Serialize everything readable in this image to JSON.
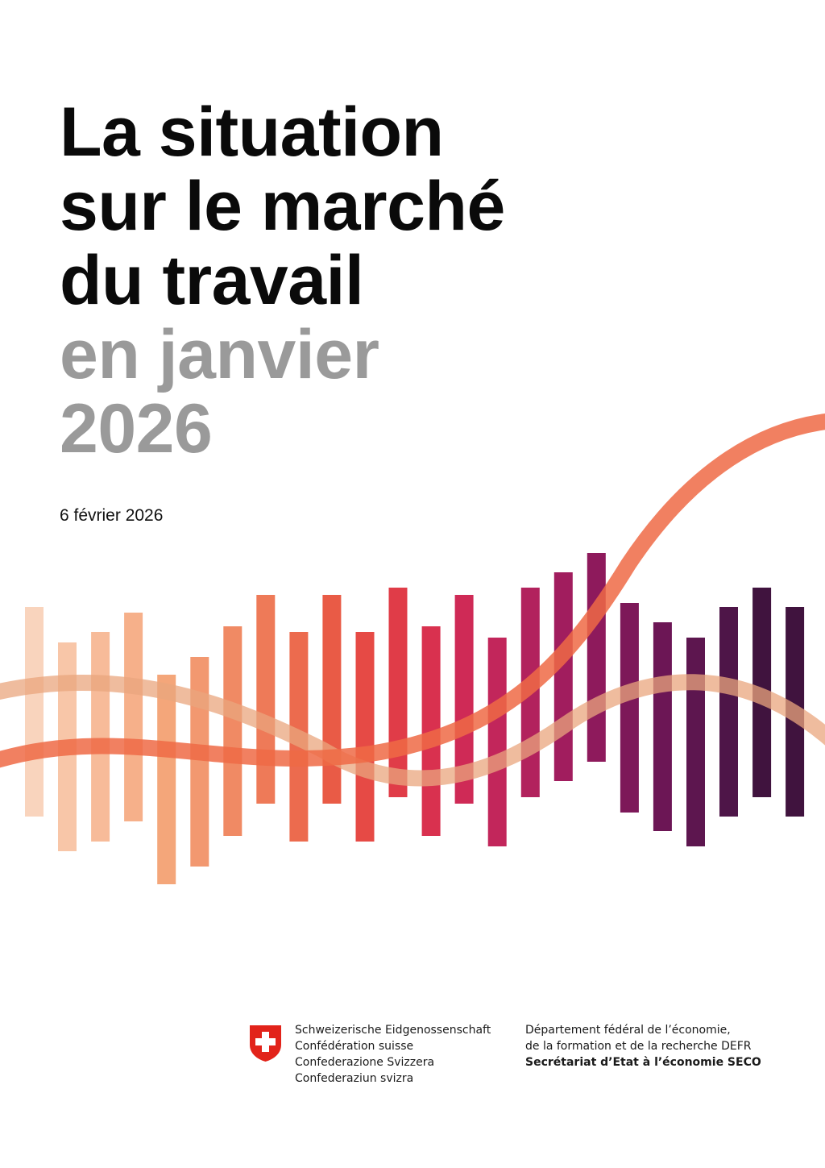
{
  "title": {
    "lines": [
      "La situation",
      "sur le marché",
      "du travail"
    ],
    "sub_lines": [
      "en janvier",
      "2026"
    ]
  },
  "date": "6 février 2026",
  "decoration": {
    "bars": [
      {
        "color": "#f9d4bd"
      },
      {
        "color": "#f8c6a8"
      },
      {
        "color": "#f7bb99"
      },
      {
        "color": "#f6b08a"
      },
      {
        "color": "#f4a67a"
      },
      {
        "color": "#f29870"
      },
      {
        "color": "#f08a64"
      },
      {
        "color": "#ee7a58"
      },
      {
        "color": "#ec6b4e"
      },
      {
        "color": "#e95b46"
      },
      {
        "color": "#e64a45"
      },
      {
        "color": "#e03c48"
      },
      {
        "color": "#d9314f"
      },
      {
        "color": "#cf2a56"
      },
      {
        "color": "#c2265b"
      },
      {
        "color": "#b2225d"
      },
      {
        "color": "#a11d5e"
      },
      {
        "color": "#8e1a5c"
      },
      {
        "color": "#7d1859"
      },
      {
        "color": "#6c1655"
      },
      {
        "color": "#5d164f"
      },
      {
        "color": "#4e1548"
      },
      {
        "color": "#40133e"
      }
    ],
    "curve_colors": {
      "orange": "#ee6a45",
      "red": "#e8363a",
      "beige": "#eaa57e"
    }
  },
  "footer": {
    "emblem": "swiss-cross-shield-icon",
    "confederation": [
      "Schweizerische Eidgenossenschaft",
      "Confédération suisse",
      "Confederazione Svizzera",
      "Confederaziun svizra"
    ],
    "department": [
      "Département fédéral de l’économie,",
      "de la formation et de la recherche DEFR",
      "Secrétariat d’Etat à l’économie SECO"
    ]
  }
}
